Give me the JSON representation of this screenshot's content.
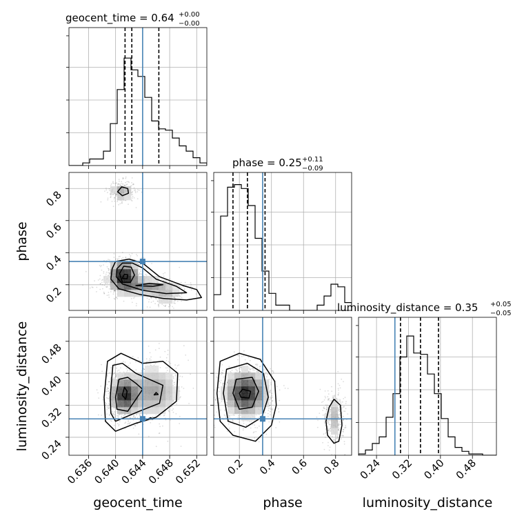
{
  "chart_data": {
    "type": "corner",
    "parameters": [
      "geocent_time",
      "phase",
      "luminosity_distance"
    ],
    "truths": {
      "geocent_time": 0.644,
      "phase": 0.345,
      "luminosity_distance": 0.286
    },
    "titles": [
      {
        "param": "geocent_time",
        "text": "geocent_time = 0.64",
        "plus": "+0.00",
        "minus": "−0.00"
      },
      {
        "param": "phase",
        "text": "phase = 0.25",
        "plus": "+0.11",
        "minus": "−0.09"
      },
      {
        "param": "luminosity_distance",
        "text": "luminosity_distance = 0.35",
        "plus": "+0.05",
        "minus": "−0.05"
      }
    ],
    "ranges": {
      "geocent_time": [
        0.6331,
        0.6535
      ],
      "phase": [
        0.04,
        0.9
      ],
      "luminosity_distance": [
        0.195,
        0.54
      ]
    },
    "axis_labels": {
      "x": [
        "geocent_time",
        "phase",
        "luminosity_distance"
      ],
      "y": [
        "phase",
        "luminosity_distance"
      ]
    },
    "ticks": {
      "geocent_time": [
        {
          "v": 0.636,
          "label": "0.636"
        },
        {
          "v": 0.64,
          "label": "0.640"
        },
        {
          "v": 0.644,
          "label": "0.644"
        },
        {
          "v": 0.648,
          "label": "0.648"
        },
        {
          "v": 0.652,
          "label": "0.652"
        }
      ],
      "phase": [
        {
          "v": 0.2,
          "label": "0.2"
        },
        {
          "v": 0.4,
          "label": "0.4"
        },
        {
          "v": 0.6,
          "label": "0.6"
        },
        {
          "v": 0.8,
          "label": "0.8"
        }
      ],
      "luminosity_distance": [
        {
          "v": 0.24,
          "label": "0.24"
        },
        {
          "v": 0.32,
          "label": "0.32"
        },
        {
          "v": 0.4,
          "label": "0.40"
        },
        {
          "v": 0.48,
          "label": "0.48"
        }
      ]
    },
    "quantiles": {
      "geocent_time": [
        0.6414,
        0.6424,
        0.6464
      ],
      "phase": [
        0.16,
        0.25,
        0.36
      ],
      "luminosity_distance": [
        0.3,
        0.35,
        0.395
      ]
    },
    "histograms": {
      "geocent_time": {
        "range": [
          0.6331,
          0.6535
        ],
        "counts": [
          0,
          0,
          0.02,
          0.05,
          0.05,
          0.11,
          0.32,
          0.58,
          0.82,
          0.73,
          0.68,
          0.52,
          0.34,
          0.28,
          0.27,
          0.21,
          0.15,
          0.11,
          0.06,
          0.02
        ]
      },
      "phase": {
        "range": [
          0.04,
          0.9
        ],
        "counts": [
          0.12,
          0.72,
          0.94,
          0.96,
          0.93,
          0.8,
          0.55,
          0.3,
          0.13,
          0.04,
          0.04,
          0,
          0,
          0,
          0,
          0.04,
          0.11,
          0.2,
          0.18,
          0.06
        ]
      },
      "luminosity_distance": {
        "range": [
          0.195,
          0.54
        ],
        "counts": [
          0.01,
          0.04,
          0.09,
          0.14,
          0.29,
          0.47,
          0.75,
          0.91,
          0.78,
          0.77,
          0.62,
          0.47,
          0.28,
          0.14,
          0.06,
          0.03,
          0.01,
          0.01,
          0,
          0
        ]
      }
    },
    "density_blobs": {
      "geocent_time_phase": [
        {
          "x": 0.6412,
          "y": 0.255,
          "sx": 0.0012,
          "sy": 0.05,
          "w": 1.0
        },
        {
          "x": 0.6445,
          "y": 0.19,
          "sx": 0.0026,
          "sy": 0.03,
          "w": 0.45
        },
        {
          "x": 0.6475,
          "y": 0.13,
          "sx": 0.0012,
          "sy": 0.025,
          "w": 0.25
        },
        {
          "x": 0.6409,
          "y": 0.78,
          "sx": 0.0009,
          "sy": 0.03,
          "w": 0.35
        }
      ],
      "geocent_time_luminosity_distance": [
        {
          "x": 0.6413,
          "y": 0.345,
          "sx": 0.0011,
          "sy": 0.025,
          "w": 1.0
        },
        {
          "x": 0.6455,
          "y": 0.355,
          "sx": 0.0022,
          "sy": 0.035,
          "w": 0.45
        }
      ],
      "phase_luminosity_distance": [
        {
          "x": 0.24,
          "y": 0.35,
          "sx": 0.07,
          "sy": 0.03,
          "w": 1.0
        },
        {
          "x": 0.79,
          "y": 0.29,
          "sx": 0.03,
          "sy": 0.03,
          "w": 0.3
        }
      ]
    },
    "contours": {
      "geocent_time_phase": [
        [
          [
            0.6395,
            0.3
          ],
          [
            0.64,
            0.345
          ],
          [
            0.642,
            0.36
          ],
          [
            0.644,
            0.335
          ],
          [
            0.6465,
            0.25
          ],
          [
            0.65,
            0.195
          ],
          [
            0.652,
            0.17
          ],
          [
            0.6527,
            0.12
          ],
          [
            0.6505,
            0.105
          ],
          [
            0.647,
            0.115
          ],
          [
            0.6435,
            0.14
          ],
          [
            0.6405,
            0.175
          ],
          [
            0.6393,
            0.235
          ]
        ],
        [
          [
            0.6402,
            0.3
          ],
          [
            0.641,
            0.335
          ],
          [
            0.6425,
            0.335
          ],
          [
            0.644,
            0.305
          ],
          [
            0.646,
            0.235
          ],
          [
            0.649,
            0.19
          ],
          [
            0.6505,
            0.15
          ],
          [
            0.6475,
            0.145
          ],
          [
            0.644,
            0.165
          ],
          [
            0.641,
            0.205
          ],
          [
            0.6401,
            0.25
          ]
        ],
        [
          [
            0.6406,
            0.27
          ],
          [
            0.6412,
            0.315
          ],
          [
            0.6423,
            0.31
          ],
          [
            0.6428,
            0.26
          ],
          [
            0.6422,
            0.215
          ],
          [
            0.641,
            0.215
          ]
        ],
        [
          [
            0.641,
            0.24
          ],
          [
            0.6413,
            0.265
          ],
          [
            0.6418,
            0.262
          ],
          [
            0.6417,
            0.236
          ]
        ],
        [
          [
            0.643,
            0.195
          ],
          [
            0.645,
            0.208
          ],
          [
            0.647,
            0.2
          ],
          [
            0.6455,
            0.19
          ]
        ],
        [
          [
            0.6403,
            0.78
          ],
          [
            0.6409,
            0.81
          ],
          [
            0.6418,
            0.8
          ],
          [
            0.6419,
            0.77
          ],
          [
            0.641,
            0.755
          ]
        ]
      ],
      "geocent_time_luminosity_distance": [
        [
          [
            0.6383,
            0.34
          ],
          [
            0.6388,
            0.43
          ],
          [
            0.6408,
            0.45
          ],
          [
            0.644,
            0.425
          ],
          [
            0.647,
            0.43
          ],
          [
            0.6492,
            0.4
          ],
          [
            0.649,
            0.33
          ],
          [
            0.646,
            0.29
          ],
          [
            0.643,
            0.275
          ],
          [
            0.64,
            0.255
          ],
          [
            0.6385,
            0.28
          ]
        ],
        [
          [
            0.6392,
            0.34
          ],
          [
            0.6396,
            0.42
          ],
          [
            0.641,
            0.425
          ],
          [
            0.643,
            0.4
          ],
          [
            0.645,
            0.385
          ],
          [
            0.647,
            0.37
          ],
          [
            0.6465,
            0.325
          ],
          [
            0.6435,
            0.305
          ],
          [
            0.64,
            0.28
          ],
          [
            0.6393,
            0.3
          ]
        ],
        [
          [
            0.64,
            0.34
          ],
          [
            0.6405,
            0.385
          ],
          [
            0.6418,
            0.39
          ],
          [
            0.643,
            0.375
          ],
          [
            0.644,
            0.36
          ],
          [
            0.643,
            0.335
          ],
          [
            0.6418,
            0.305
          ],
          [
            0.6402,
            0.31
          ]
        ],
        [
          [
            0.641,
            0.345
          ],
          [
            0.6413,
            0.365
          ],
          [
            0.6417,
            0.355
          ],
          [
            0.6415,
            0.335
          ]
        ],
        [
          [
            0.6457,
            0.346
          ],
          [
            0.646,
            0.352
          ],
          [
            0.6463,
            0.347
          ]
        ],
        [
          [
            0.6448,
            0.286
          ],
          [
            0.6452,
            0.289
          ],
          [
            0.6455,
            0.285
          ]
        ]
      ],
      "phase_luminosity_distance": [
        [
          [
            0.06,
            0.35
          ],
          [
            0.08,
            0.43
          ],
          [
            0.2,
            0.45
          ],
          [
            0.33,
            0.435
          ],
          [
            0.42,
            0.38
          ],
          [
            0.43,
            0.32
          ],
          [
            0.4,
            0.27
          ],
          [
            0.3,
            0.23
          ],
          [
            0.16,
            0.245
          ],
          [
            0.08,
            0.28
          ]
        ],
        [
          [
            0.1,
            0.35
          ],
          [
            0.12,
            0.41
          ],
          [
            0.25,
            0.425
          ],
          [
            0.35,
            0.4
          ],
          [
            0.38,
            0.34
          ],
          [
            0.34,
            0.29
          ],
          [
            0.24,
            0.265
          ],
          [
            0.13,
            0.28
          ]
        ],
        [
          [
            0.16,
            0.35
          ],
          [
            0.18,
            0.385
          ],
          [
            0.28,
            0.39
          ],
          [
            0.32,
            0.355
          ],
          [
            0.28,
            0.315
          ],
          [
            0.2,
            0.31
          ]
        ],
        [
          [
            0.2,
            0.35
          ],
          [
            0.22,
            0.36
          ],
          [
            0.27,
            0.355
          ],
          [
            0.26,
            0.338
          ],
          [
            0.21,
            0.34
          ]
        ],
        [
          [
            0.74,
            0.28
          ],
          [
            0.76,
            0.315
          ],
          [
            0.79,
            0.335
          ],
          [
            0.83,
            0.32
          ],
          [
            0.84,
            0.27
          ],
          [
            0.82,
            0.23
          ],
          [
            0.79,
            0.225
          ],
          [
            0.75,
            0.245
          ]
        ]
      ]
    },
    "colors": {
      "truth": "#4682b4",
      "hist": "#000000",
      "grid": "#b0b0b0"
    },
    "grid": true
  }
}
